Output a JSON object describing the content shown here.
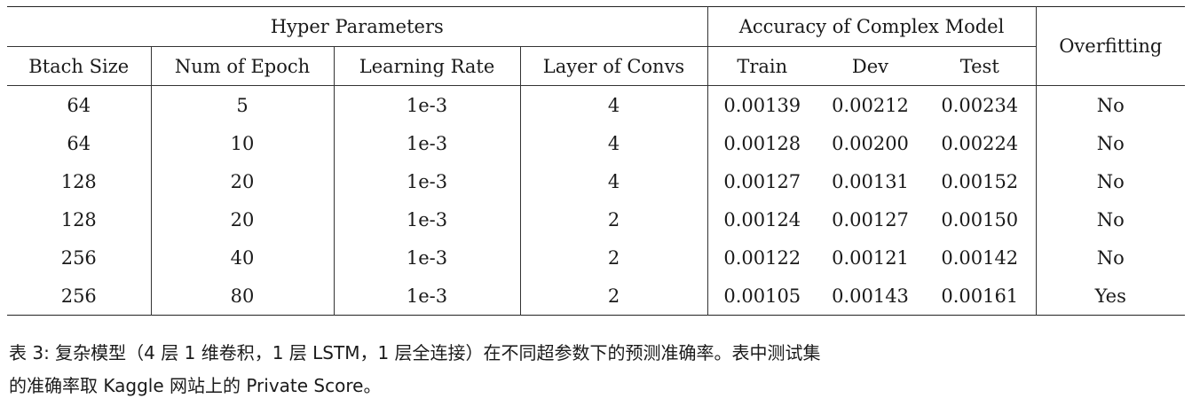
{
  "table": {
    "group_headers": {
      "hyper": "Hyper Parameters",
      "accuracy": "Accuracy of Complex Model",
      "overfitting": "Overfitting"
    },
    "columns": [
      "Btach Size",
      "Num of Epoch",
      "Learning Rate",
      "Layer of Convs",
      "Train",
      "Dev",
      "Test"
    ],
    "rows": [
      [
        "64",
        "5",
        "1e-3",
        "4",
        "0.00139",
        "0.00212",
        "0.00234",
        "No"
      ],
      [
        "64",
        "10",
        "1e-3",
        "4",
        "0.00128",
        "0.00200",
        "0.00224",
        "No"
      ],
      [
        "128",
        "20",
        "1e-3",
        "4",
        "0.00127",
        "0.00131",
        "0.00152",
        "No"
      ],
      [
        "128",
        "20",
        "1e-3",
        "2",
        "0.00124",
        "0.00127",
        "0.00150",
        "No"
      ],
      [
        "256",
        "40",
        "1e-3",
        "2",
        "0.00122",
        "0.00121",
        "0.00142",
        "No"
      ],
      [
        "256",
        "80",
        "1e-3",
        "2",
        "0.00105",
        "0.00143",
        "0.00161",
        "Yes"
      ]
    ]
  },
  "caption": {
    "line1": "表 3: 复杂模型（4 层 1 维卷积，1 层 LSTM，1 层全连接）在不同超参数下的预测准确率。表中测试集",
    "line2": "的准确率取 Kaggle 网站上的 Private Score。"
  }
}
